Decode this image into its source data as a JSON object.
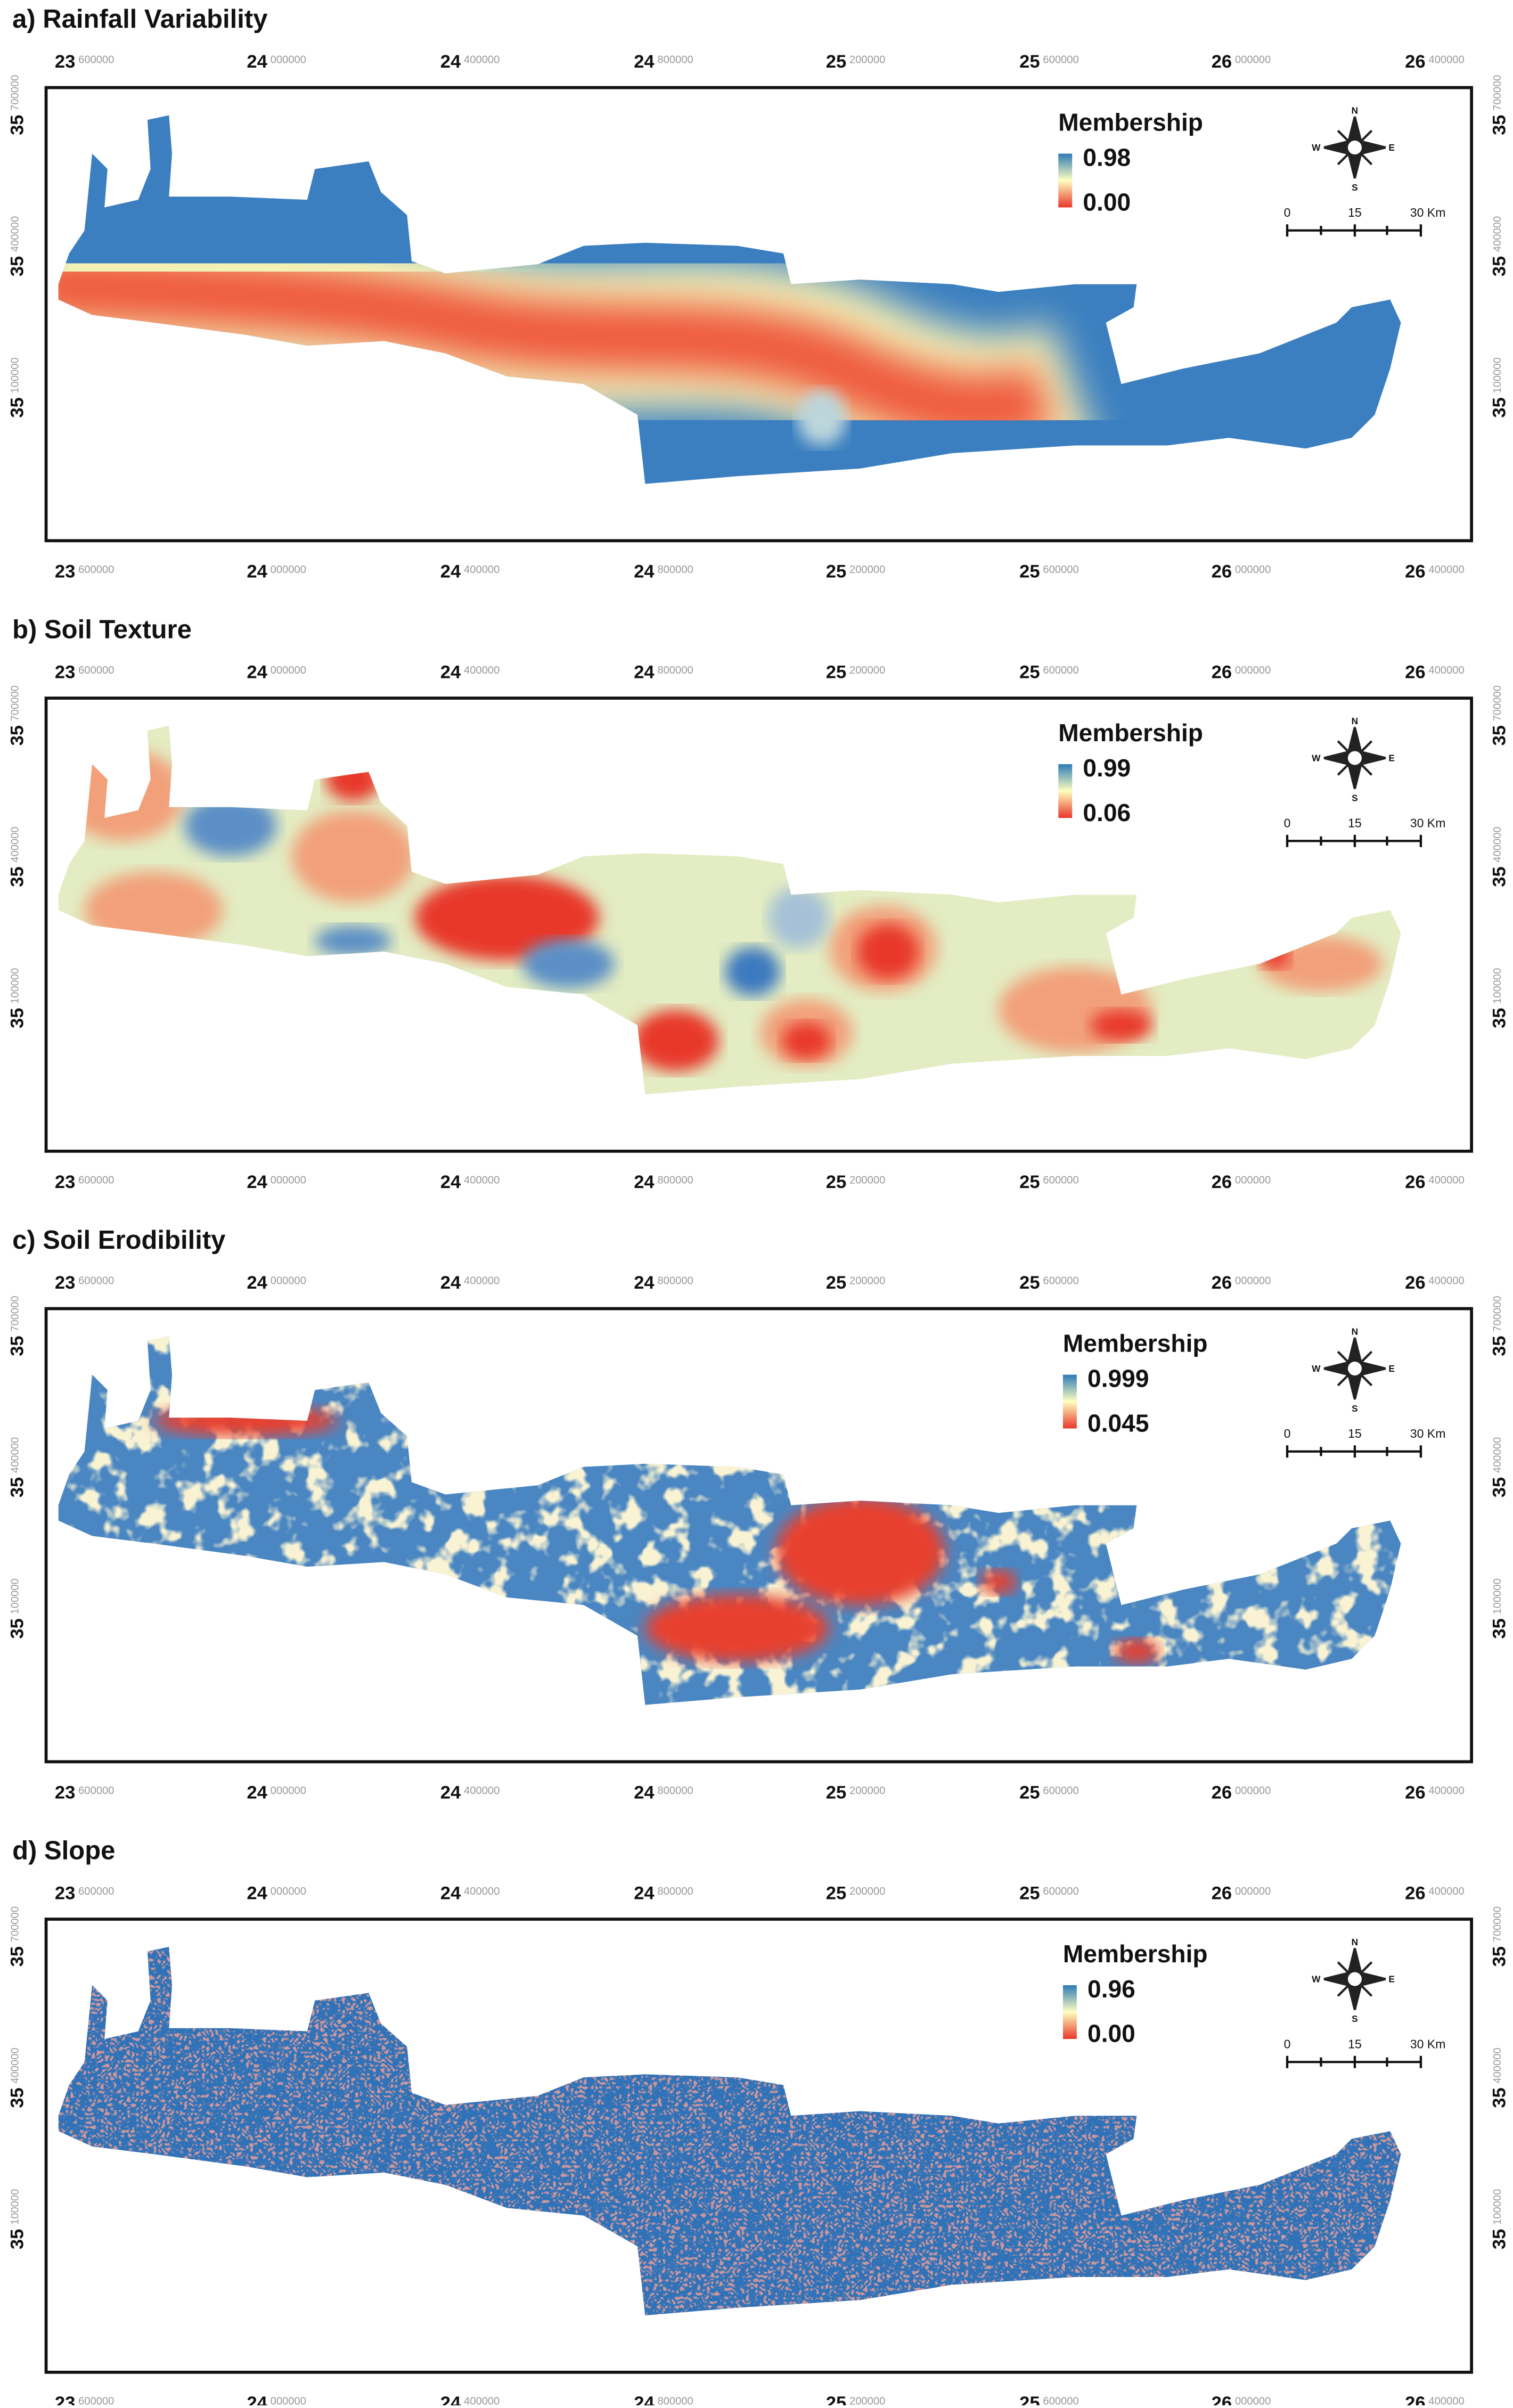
{
  "panels": [
    {
      "title": "a) Rainfall Variability",
      "legend": {
        "title": "Membership",
        "max": "0.98",
        "min": "0.00"
      }
    },
    {
      "title": "b) Soil Texture",
      "legend": {
        "title": "Membership",
        "max": "0.99",
        "min": "0.06"
      }
    },
    {
      "title": "c) Soil Erodibility",
      "legend": {
        "title": "Membership",
        "max": "0.999",
        "min": "0.045"
      }
    },
    {
      "title": "d) Slope",
      "legend": {
        "title": "Membership",
        "max": "0.96",
        "min": "0.00"
      }
    }
  ],
  "x_labels": [
    {
      "major": "23",
      "minor": "600000"
    },
    {
      "major": "24",
      "minor": "000000"
    },
    {
      "major": "24",
      "minor": "400000"
    },
    {
      "major": "24",
      "minor": "800000"
    },
    {
      "major": "25",
      "minor": "200000"
    },
    {
      "major": "25",
      "minor": "600000"
    },
    {
      "major": "26",
      "minor": "000000"
    },
    {
      "major": "26",
      "minor": "400000"
    }
  ],
  "y_labels": [
    {
      "major": "35",
      "minor": "700000"
    },
    {
      "major": "35",
      "minor": "400000"
    },
    {
      "major": "35",
      "minor": "100000"
    }
  ],
  "scale_bar": [
    "0",
    "15",
    "30 Km"
  ],
  "compass": [
    "N",
    "S",
    "E",
    "W"
  ]
}
